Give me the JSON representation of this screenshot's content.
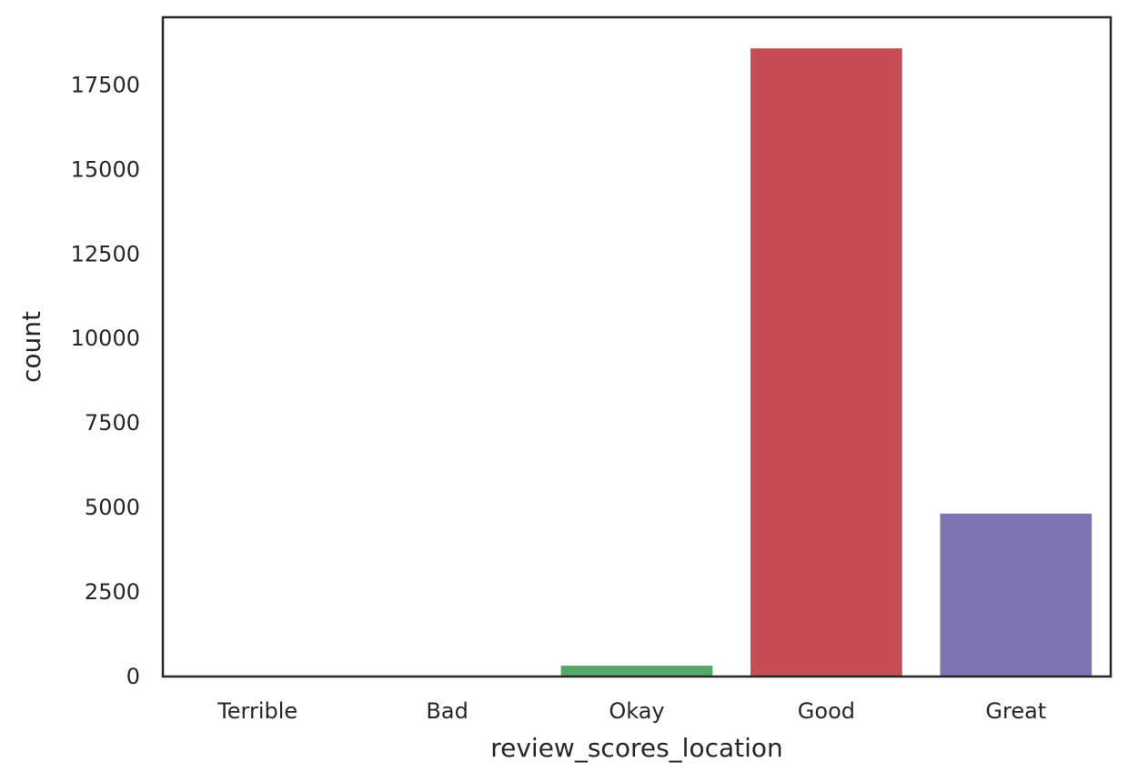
{
  "chart_data": {
    "type": "bar",
    "title": "",
    "xlabel": "review_scores_location",
    "ylabel": "count",
    "categories": [
      "Terrible",
      "Bad",
      "Okay",
      "Good",
      "Great"
    ],
    "values": [
      5,
      20,
      320,
      18580,
      4820
    ],
    "colors": [
      "#4c72b0",
      "#dd8452",
      "#55a868",
      "#c44e52",
      "#8172b3"
    ],
    "ylim": [
      0,
      19500
    ],
    "yticks": [
      0,
      2500,
      5000,
      7500,
      10000,
      12500,
      15000,
      17500
    ],
    "grid": false,
    "legend": "none"
  }
}
